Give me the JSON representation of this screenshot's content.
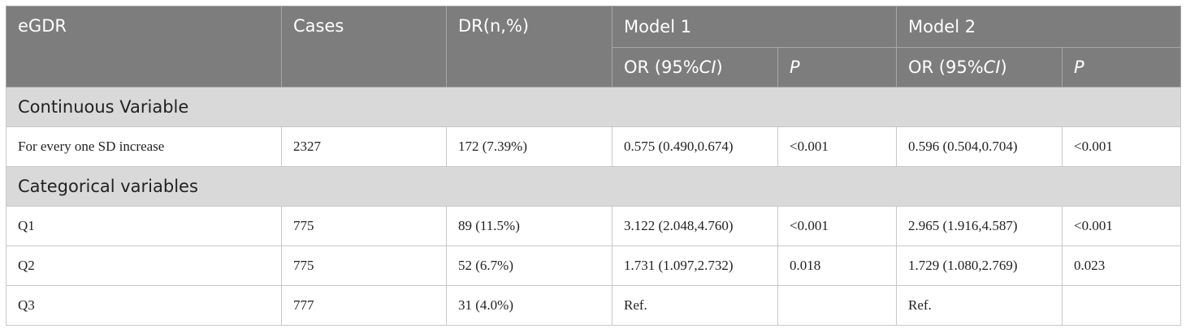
{
  "header": {
    "col_egdr": "eGDR",
    "col_cases": "Cases",
    "col_dr": "DR(n,%)",
    "model1": "Model 1",
    "model2": "Model 2",
    "or_prefix": "OR (95%",
    "or_ci": "CI",
    "or_suffix": ")",
    "p": "P"
  },
  "sections": {
    "continuous": "Continuous Variable",
    "categorical": "Categorical variables"
  },
  "rows": {
    "sd": {
      "label": "For every one SD increase",
      "cases": "2327",
      "dr": "172 (7.39%)",
      "m1_or": "0.575 (0.490,0.674)",
      "m1_p": "<0.001",
      "m2_or": "0.596 (0.504,0.704)",
      "m2_p": "<0.001"
    },
    "q1": {
      "label": "Q1",
      "cases": "775",
      "dr": "89 (11.5%)",
      "m1_or": "3.122 (2.048,4.760)",
      "m1_p": "<0.001",
      "m2_or": "2.965 (1.916,4.587)",
      "m2_p": "<0.001"
    },
    "q2": {
      "label": "Q2",
      "cases": "775",
      "dr": "52 (6.7%)",
      "m1_or": "1.731 (1.097,2.732)",
      "m1_p": "0.018",
      "m2_or": "1.729 (1.080,2.769)",
      "m2_p": "0.023"
    },
    "q3": {
      "label": "Q3",
      "cases": "777",
      "dr": "31 (4.0%)",
      "m1_or": "Ref.",
      "m1_p": "",
      "m2_or": "Ref.",
      "m2_p": ""
    }
  },
  "colors": {
    "header_bg": "#7d7d7d",
    "section_bg": "#d9d9d9",
    "border": "#c8c8c8"
  }
}
